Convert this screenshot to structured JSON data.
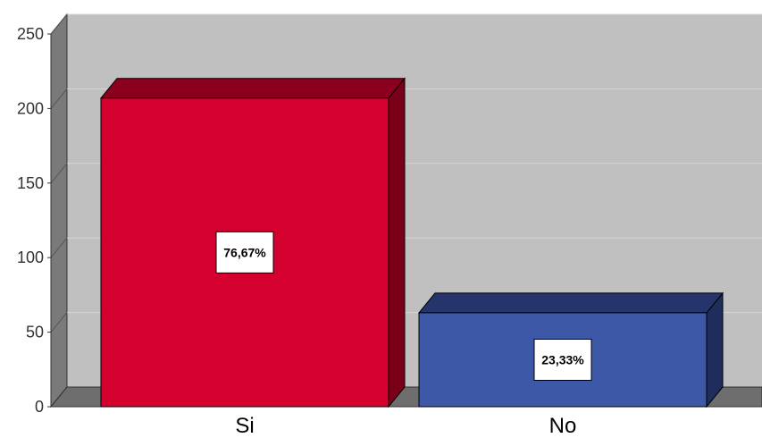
{
  "chart_data": {
    "type": "bar",
    "title": "",
    "xlabel": "",
    "ylabel": "",
    "categories": [
      "Si",
      "No"
    ],
    "values": [
      207,
      63
    ],
    "data_labels": [
      "76,67%",
      "23,33%"
    ],
    "ylim": [
      0,
      250
    ],
    "yticks": [
      0,
      50,
      100,
      150,
      200,
      250
    ],
    "ytick_labels": [
      "0",
      "50",
      "100",
      "150",
      "200",
      "250"
    ],
    "grid": true,
    "style": "3d",
    "colors": {
      "bars": [
        "#d4002e",
        "#3d58a7"
      ],
      "bar_tops": [
        "#8a001e",
        "#25346a"
      ],
      "bar_sides": [
        "#7a0019",
        "#1f2d5c"
      ],
      "plot_background": "#c0c0c0",
      "left_wall": "#7a7a7a",
      "floor": "#6e6e6e",
      "gridline": "#d6d6d6"
    }
  }
}
